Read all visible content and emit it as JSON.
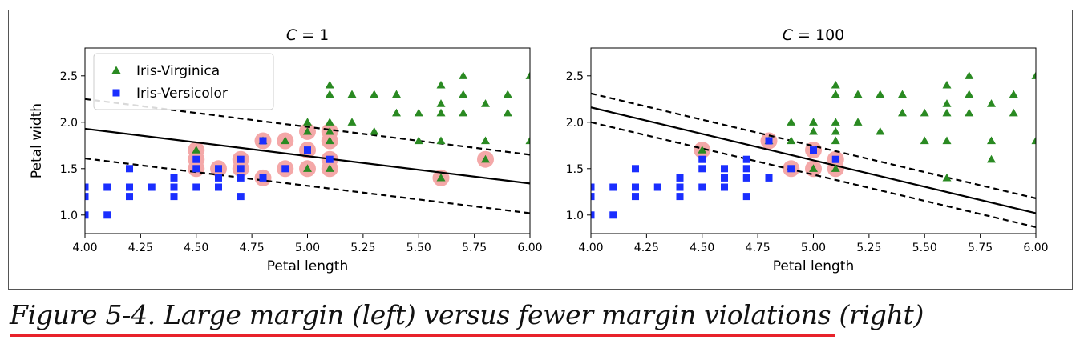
{
  "caption": "Figure 5-4. Large margin (left) versus fewer margin violations (right)",
  "colors": {
    "virginica": "#2a8a22",
    "versicolor": "#1a2eff",
    "support_vector": "#f4a8a8",
    "line": "#000000"
  },
  "chart_data": [
    {
      "type": "scatter",
      "title": "C = 1",
      "xlabel": "Petal length",
      "ylabel": "Petal width",
      "xlim": [
        4.0,
        6.0
      ],
      "ylim": [
        0.8,
        2.8
      ],
      "xticks": [
        "4.00",
        "4.25",
        "4.50",
        "4.75",
        "5.00",
        "5.25",
        "5.50",
        "5.75",
        "6.00"
      ],
      "yticks": [
        "1.0",
        "1.5",
        "2.0",
        "2.5"
      ],
      "legend": {
        "placement": "top-left",
        "entries": [
          {
            "label": "Iris-Virginica",
            "marker": "triangle",
            "color": "#2a8a22"
          },
          {
            "label": "Iris-Versicolor",
            "marker": "square",
            "color": "#1a2eff"
          }
        ]
      },
      "decision_boundary": {
        "x": [
          4.0,
          6.0
        ],
        "y": [
          1.93,
          1.34
        ]
      },
      "margin_upper": {
        "x": [
          4.0,
          6.0
        ],
        "y": [
          2.25,
          1.65
        ]
      },
      "margin_lower": {
        "x": [
          4.0,
          6.0
        ],
        "y": [
          1.61,
          1.02
        ]
      },
      "support_vectors": [
        [
          4.5,
          1.7
        ],
        [
          4.5,
          1.6
        ],
        [
          4.5,
          1.5
        ],
        [
          4.6,
          1.5
        ],
        [
          4.7,
          1.6
        ],
        [
          4.7,
          1.5
        ],
        [
          4.8,
          1.8
        ],
        [
          4.8,
          1.4
        ],
        [
          4.9,
          1.8
        ],
        [
          4.9,
          1.5
        ],
        [
          5.0,
          1.9
        ],
        [
          5.0,
          1.7
        ],
        [
          5.0,
          1.5
        ],
        [
          5.1,
          1.9
        ],
        [
          5.1,
          1.8
        ],
        [
          5.1,
          1.6
        ],
        [
          5.1,
          1.5
        ],
        [
          5.6,
          1.4
        ],
        [
          5.8,
          1.6
        ]
      ],
      "series": [
        {
          "name": "Iris-Virginica",
          "marker": "triangle",
          "points": [
            [
              4.5,
              1.7
            ],
            [
              4.8,
              1.8
            ],
            [
              4.9,
              1.8
            ],
            [
              5.0,
              2.0
            ],
            [
              5.0,
              1.9
            ],
            [
              5.0,
              1.5
            ],
            [
              5.1,
              2.4
            ],
            [
              5.1,
              2.3
            ],
            [
              5.1,
              2.0
            ],
            [
              5.1,
              1.9
            ],
            [
              5.1,
              1.8
            ],
            [
              5.1,
              1.5
            ],
            [
              5.2,
              2.3
            ],
            [
              5.2,
              2.0
            ],
            [
              5.3,
              2.3
            ],
            [
              5.3,
              1.9
            ],
            [
              5.4,
              2.3
            ],
            [
              5.4,
              2.1
            ],
            [
              5.5,
              2.1
            ],
            [
              5.5,
              1.8
            ],
            [
              5.6,
              2.4
            ],
            [
              5.6,
              2.2
            ],
            [
              5.6,
              2.1
            ],
            [
              5.6,
              1.8
            ],
            [
              5.6,
              1.4
            ],
            [
              5.7,
              2.5
            ],
            [
              5.7,
              2.3
            ],
            [
              5.7,
              2.1
            ],
            [
              5.8,
              2.2
            ],
            [
              5.8,
              1.8
            ],
            [
              5.8,
              1.6
            ],
            [
              5.9,
              2.3
            ],
            [
              5.9,
              2.1
            ],
            [
              6.0,
              2.5
            ],
            [
              6.0,
              1.8
            ]
          ]
        },
        {
          "name": "Iris-Versicolor",
          "marker": "square",
          "points": [
            [
              4.0,
              1.3
            ],
            [
              4.0,
              1.2
            ],
            [
              4.0,
              1.0
            ],
            [
              4.1,
              1.3
            ],
            [
              4.1,
              1.0
            ],
            [
              4.2,
              1.5
            ],
            [
              4.2,
              1.3
            ],
            [
              4.2,
              1.2
            ],
            [
              4.3,
              1.3
            ],
            [
              4.4,
              1.4
            ],
            [
              4.4,
              1.3
            ],
            [
              4.4,
              1.2
            ],
            [
              4.5,
              1.6
            ],
            [
              4.5,
              1.5
            ],
            [
              4.5,
              1.3
            ],
            [
              4.6,
              1.5
            ],
            [
              4.6,
              1.4
            ],
            [
              4.6,
              1.3
            ],
            [
              4.7,
              1.6
            ],
            [
              4.7,
              1.5
            ],
            [
              4.7,
              1.4
            ],
            [
              4.7,
              1.2
            ],
            [
              4.8,
              1.8
            ],
            [
              4.8,
              1.4
            ],
            [
              4.9,
              1.5
            ],
            [
              5.0,
              1.7
            ],
            [
              5.1,
              1.6
            ]
          ]
        }
      ]
    },
    {
      "type": "scatter",
      "title": "C = 100",
      "xlabel": "Petal length",
      "ylabel": "",
      "xlim": [
        4.0,
        6.0
      ],
      "ylim": [
        0.8,
        2.8
      ],
      "xticks": [
        "4.00",
        "4.25",
        "4.50",
        "4.75",
        "5.00",
        "5.25",
        "5.50",
        "5.75",
        "6.00"
      ],
      "yticks": [
        "1.0",
        "1.5",
        "2.0",
        "2.5"
      ],
      "decision_boundary": {
        "x": [
          4.0,
          6.0
        ],
        "y": [
          2.16,
          1.02
        ]
      },
      "margin_upper": {
        "x": [
          4.0,
          6.0
        ],
        "y": [
          2.31,
          1.18
        ]
      },
      "margin_lower": {
        "x": [
          4.0,
          6.0
        ],
        "y": [
          2.0,
          0.87
        ]
      },
      "support_vectors": [
        [
          4.5,
          1.7
        ],
        [
          4.8,
          1.8
        ],
        [
          4.9,
          1.5
        ],
        [
          5.0,
          1.7
        ],
        [
          5.0,
          1.5
        ],
        [
          5.1,
          1.6
        ],
        [
          5.1,
          1.5
        ]
      ],
      "series": [
        {
          "name": "Iris-Virginica",
          "marker": "triangle",
          "points": [
            [
              4.5,
              1.7
            ],
            [
              4.8,
              1.8
            ],
            [
              4.9,
              2.0
            ],
            [
              4.9,
              1.8
            ],
            [
              5.0,
              2.0
            ],
            [
              5.0,
              1.9
            ],
            [
              5.0,
              1.5
            ],
            [
              5.1,
              2.4
            ],
            [
              5.1,
              2.3
            ],
            [
              5.1,
              2.0
            ],
            [
              5.1,
              1.9
            ],
            [
              5.1,
              1.8
            ],
            [
              5.1,
              1.5
            ],
            [
              5.2,
              2.3
            ],
            [
              5.2,
              2.0
            ],
            [
              5.3,
              2.3
            ],
            [
              5.3,
              1.9
            ],
            [
              5.4,
              2.3
            ],
            [
              5.4,
              2.1
            ],
            [
              5.5,
              2.1
            ],
            [
              5.5,
              1.8
            ],
            [
              5.6,
              2.4
            ],
            [
              5.6,
              2.2
            ],
            [
              5.6,
              2.1
            ],
            [
              5.6,
              1.8
            ],
            [
              5.6,
              1.4
            ],
            [
              5.7,
              2.5
            ],
            [
              5.7,
              2.3
            ],
            [
              5.7,
              2.1
            ],
            [
              5.8,
              2.2
            ],
            [
              5.8,
              1.8
            ],
            [
              5.8,
              1.6
            ],
            [
              5.9,
              2.3
            ],
            [
              5.9,
              2.1
            ],
            [
              6.0,
              2.5
            ],
            [
              6.0,
              1.8
            ]
          ]
        },
        {
          "name": "Iris-Versicolor",
          "marker": "square",
          "points": [
            [
              4.0,
              1.3
            ],
            [
              4.0,
              1.2
            ],
            [
              4.0,
              1.0
            ],
            [
              4.1,
              1.3
            ],
            [
              4.1,
              1.0
            ],
            [
              4.2,
              1.5
            ],
            [
              4.2,
              1.3
            ],
            [
              4.2,
              1.2
            ],
            [
              4.3,
              1.3
            ],
            [
              4.4,
              1.4
            ],
            [
              4.4,
              1.3
            ],
            [
              4.4,
              1.2
            ],
            [
              4.5,
              1.6
            ],
            [
              4.5,
              1.5
            ],
            [
              4.5,
              1.3
            ],
            [
              4.6,
              1.5
            ],
            [
              4.6,
              1.4
            ],
            [
              4.6,
              1.3
            ],
            [
              4.7,
              1.6
            ],
            [
              4.7,
              1.5
            ],
            [
              4.7,
              1.4
            ],
            [
              4.7,
              1.2
            ],
            [
              4.8,
              1.8
            ],
            [
              4.8,
              1.4
            ],
            [
              4.9,
              1.5
            ],
            [
              5.0,
              1.7
            ],
            [
              5.1,
              1.6
            ]
          ]
        }
      ]
    }
  ]
}
